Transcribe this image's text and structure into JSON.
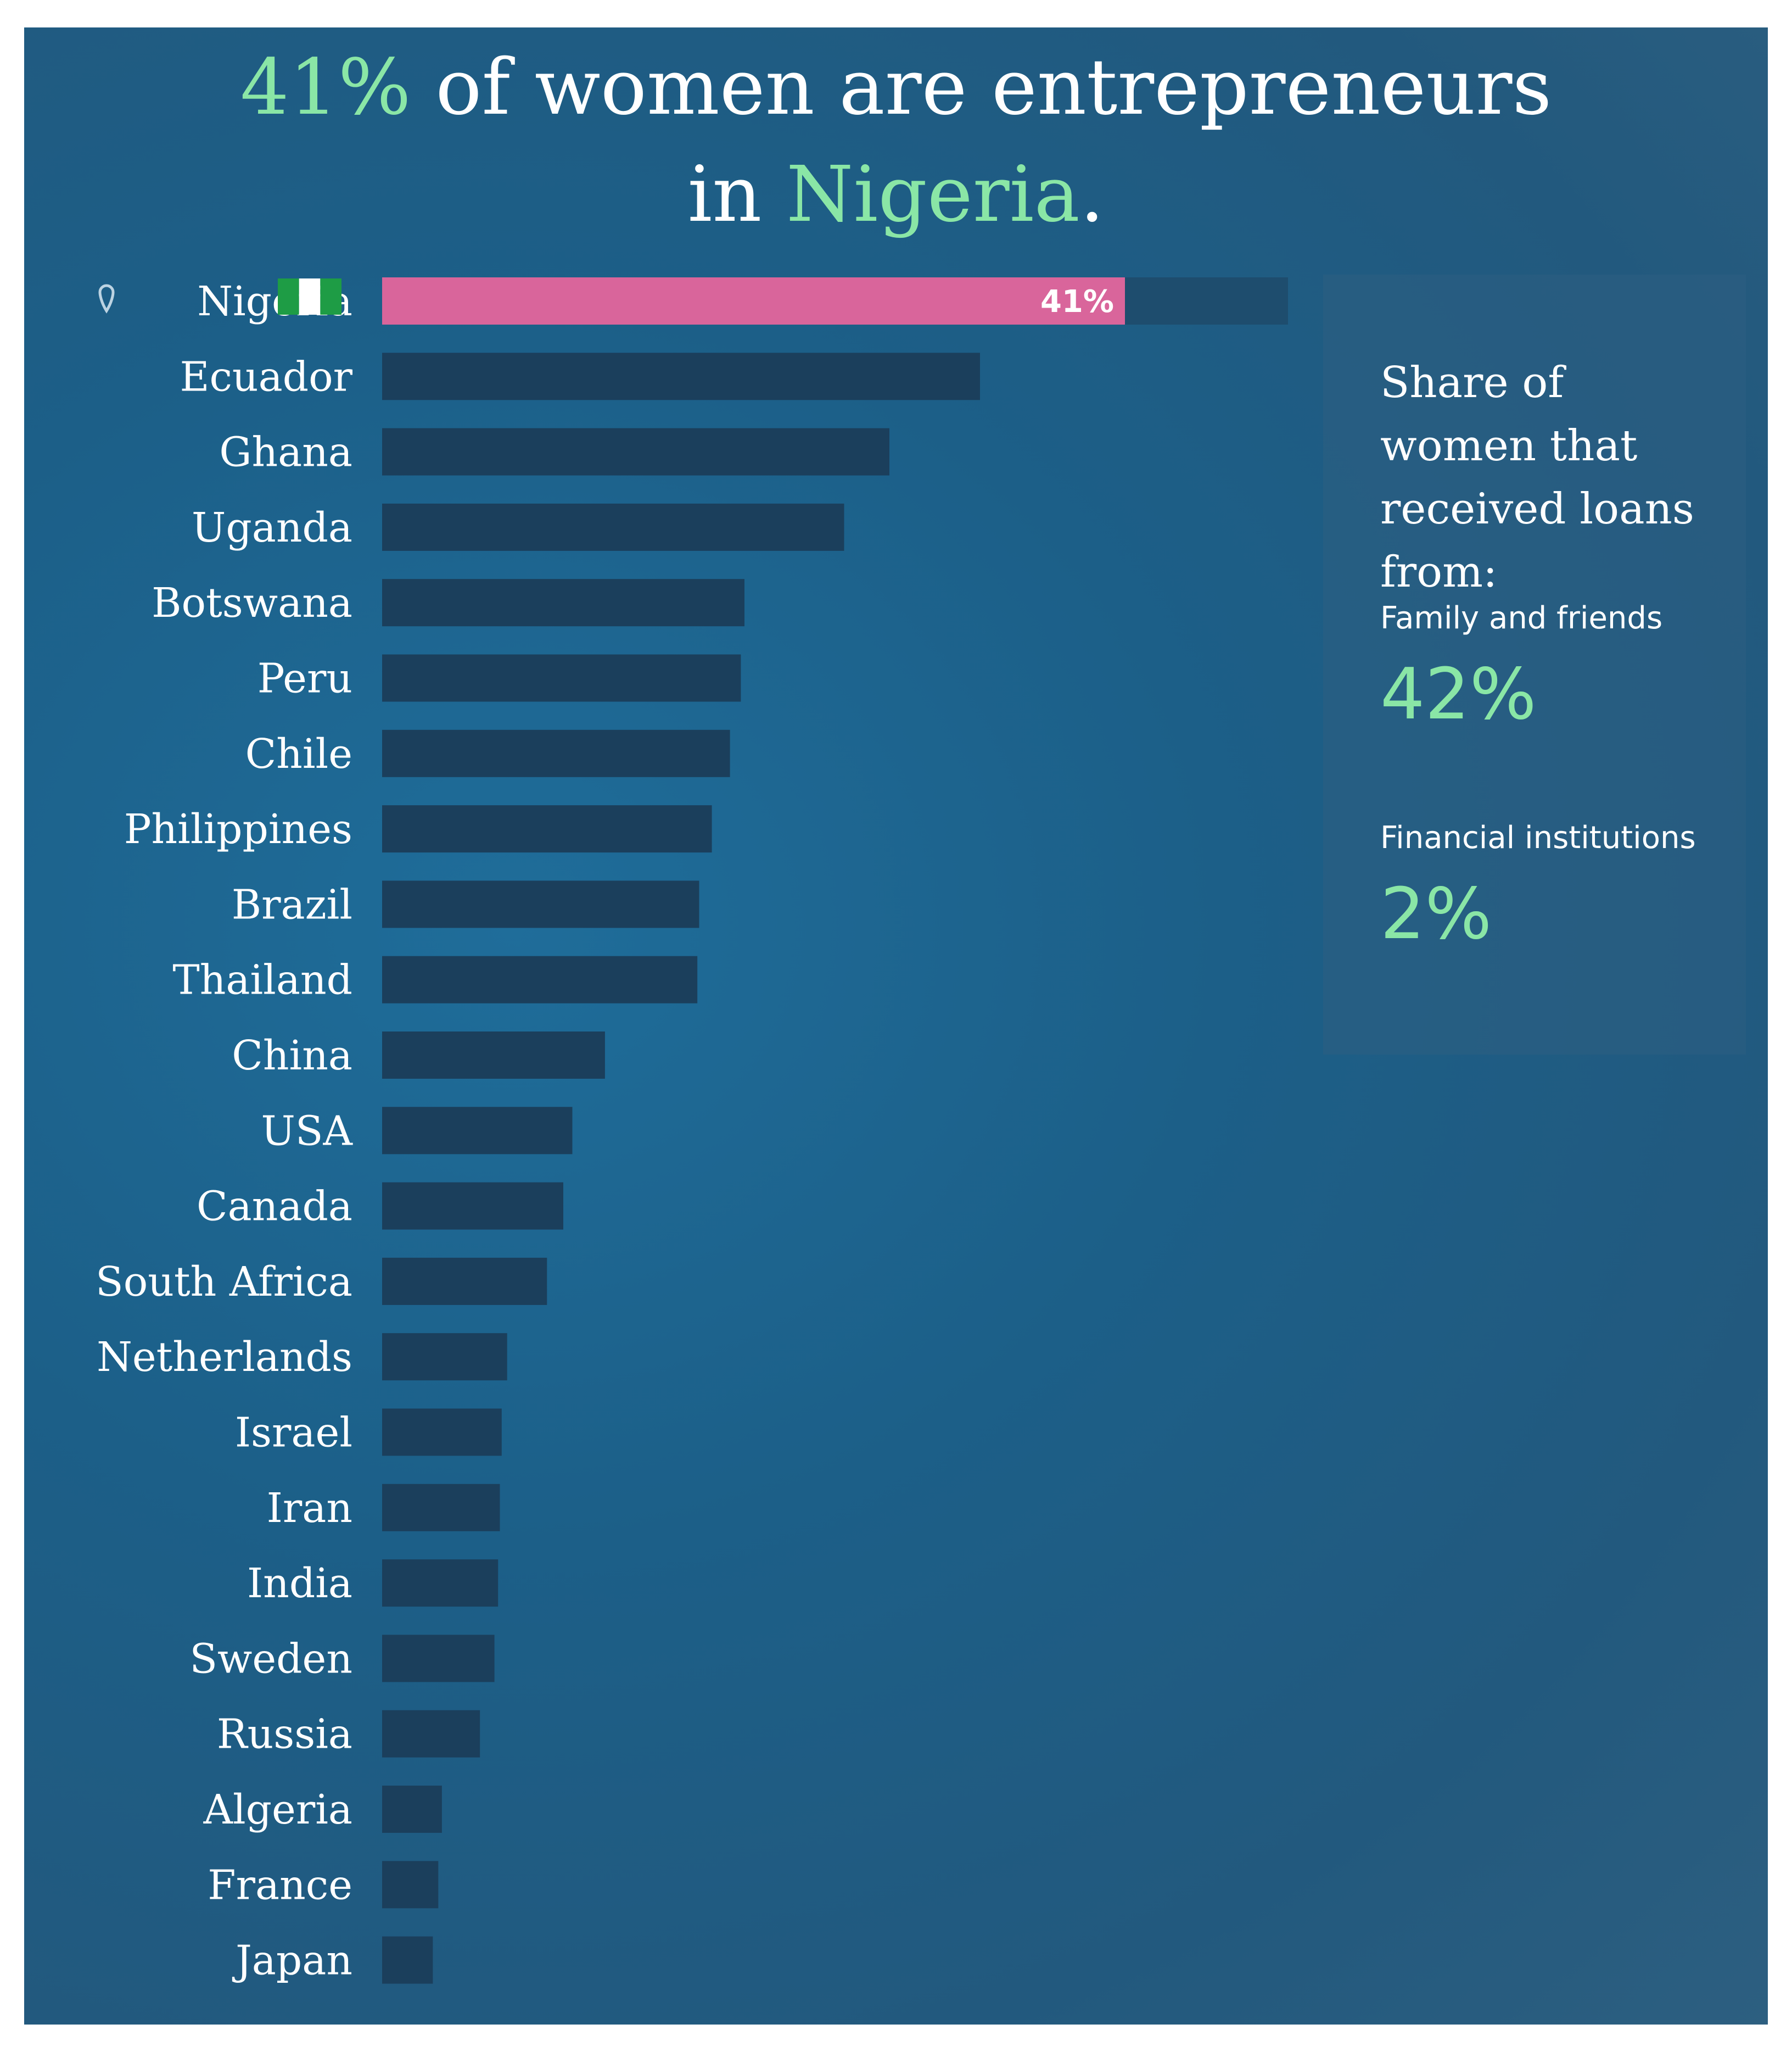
{
  "headline": {
    "percent": "41%",
    "line1_rest": " of women are entrepreneurs",
    "line2_prefix": "in ",
    "country": "Nigeria",
    "period": "."
  },
  "chart_data": {
    "type": "bar",
    "orientation": "horizontal",
    "title": "41% of women are entrepreneurs in Nigeria.",
    "highlight": "Nigeria",
    "highlight_label": "41%",
    "xlim": [
      0,
      50
    ],
    "categories": [
      "Nigeria",
      "Ecuador",
      "Ghana",
      "Uganda",
      "Botswana",
      "Peru",
      "Chile",
      "Philippines",
      "Brazil",
      "Thailand",
      "China",
      "USA",
      "Canada",
      "South Africa",
      "Netherlands",
      "Israel",
      "Iran",
      "India",
      "Sweden",
      "Russia",
      "Algeria",
      "France",
      "Japan"
    ],
    "values": [
      41,
      33,
      28,
      25.5,
      20,
      19.8,
      19.2,
      18.2,
      17.5,
      17.4,
      12.3,
      10.5,
      10,
      9.1,
      6.9,
      6.6,
      6.5,
      6.4,
      6.2,
      5.4,
      3.3,
      3.1,
      2.8
    ]
  },
  "side_panel": {
    "title": "Share of women that received loans from:",
    "items": [
      {
        "label": "Family and friends",
        "value": "42%"
      },
      {
        "label": "Financial institutions",
        "value": "2%"
      }
    ]
  },
  "colors": {
    "accent": "#8ae6a6",
    "highlight_bar": "#d9659b",
    "bar": "#1b3f5c",
    "background": "#1c5f88"
  }
}
